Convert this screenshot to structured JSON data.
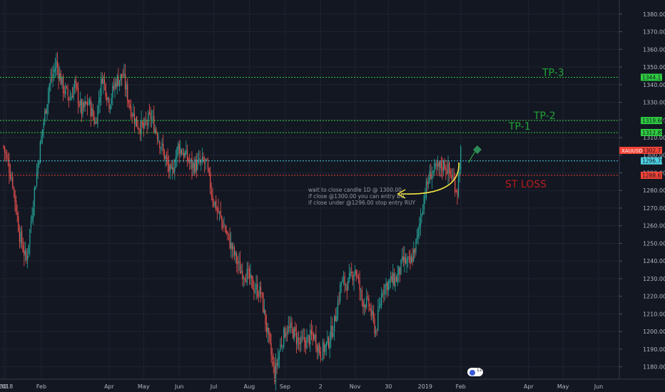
{
  "chart_data": {
    "type": "candlestick",
    "symbol": "XAUUSD",
    "ylim": [
      1173,
      1388
    ],
    "y_ticks": [
      1180,
      1190,
      1200,
      1210,
      1220,
      1230,
      1240,
      1250,
      1260,
      1270,
      1280,
      1290,
      1300,
      1310,
      1320,
      1330,
      1340,
      1350,
      1360,
      1370,
      1380
    ],
    "x_labels": [
      {
        "label": "30",
        "day": 0
      },
      {
        "label": "2018",
        "day": 2
      },
      {
        "label": "Feb",
        "day": 33
      },
      {
        "label": "Apr",
        "day": 92
      },
      {
        "label": "May",
        "day": 122
      },
      {
        "label": "Jun",
        "day": 153
      },
      {
        "label": "Jul",
        "day": 183
      },
      {
        "label": "Aug",
        "day": 214
      },
      {
        "label": "Sep",
        "day": 245
      },
      {
        "label": "2",
        "day": 276
      },
      {
        "label": "Nov",
        "day": 306
      },
      {
        "label": "30",
        "day": 335
      },
      {
        "label": "2019",
        "day": 367
      },
      {
        "label": "Feb",
        "day": 398
      },
      {
        "label": "Apr",
        "day": 457
      },
      {
        "label": "May",
        "day": 487
      },
      {
        "label": "Jun",
        "day": 518
      }
    ],
    "x_range": [
      -3,
      536
    ],
    "price_path": [
      [
        0,
        1305
      ],
      [
        8,
        1285
      ],
      [
        14,
        1255
      ],
      [
        20,
        1240
      ],
      [
        27,
        1280
      ],
      [
        34,
        1315
      ],
      [
        40,
        1340
      ],
      [
        46,
        1352
      ],
      [
        52,
        1338
      ],
      [
        58,
        1332
      ],
      [
        62,
        1340
      ],
      [
        68,
        1325
      ],
      [
        74,
        1330
      ],
      [
        80,
        1318
      ],
      [
        86,
        1345
      ],
      [
        92,
        1330
      ],
      [
        98,
        1342
      ],
      [
        104,
        1345
      ],
      [
        110,
        1328
      ],
      [
        116,
        1318
      ],
      [
        122,
        1315
      ],
      [
        128,
        1322
      ],
      [
        134,
        1312
      ],
      [
        140,
        1300
      ],
      [
        146,
        1288
      ],
      [
        152,
        1305
      ],
      [
        158,
        1300
      ],
      [
        164,
        1294
      ],
      [
        170,
        1295
      ],
      [
        176,
        1296
      ],
      [
        182,
        1276
      ],
      [
        188,
        1266
      ],
      [
        194,
        1256
      ],
      [
        200,
        1245
      ],
      [
        206,
        1235
      ],
      [
        212,
        1232
      ],
      [
        218,
        1225
      ],
      [
        224,
        1222
      ],
      [
        230,
        1198
      ],
      [
        236,
        1175
      ],
      [
        241,
        1192
      ],
      [
        246,
        1202
      ],
      [
        252,
        1200
      ],
      [
        258,
        1193
      ],
      [
        264,
        1195
      ],
      [
        270,
        1198
      ],
      [
        276,
        1188
      ],
      [
        282,
        1193
      ],
      [
        288,
        1205
      ],
      [
        294,
        1228
      ],
      [
        300,
        1227
      ],
      [
        306,
        1236
      ],
      [
        312,
        1218
      ],
      [
        318,
        1215
      ],
      [
        324,
        1200
      ],
      [
        330,
        1225
      ],
      [
        336,
        1228
      ],
      [
        342,
        1230
      ],
      [
        348,
        1240
      ],
      [
        354,
        1238
      ],
      [
        360,
        1252
      ],
      [
        366,
        1277
      ],
      [
        372,
        1290
      ],
      [
        378,
        1292
      ],
      [
        384,
        1295
      ],
      [
        390,
        1288
      ],
      [
        395,
        1280
      ],
      [
        398,
        1302
      ]
    ],
    "horizontal_levels": [
      {
        "label": "TP-3",
        "value": 1344.17,
        "color": "#2ecc40",
        "style": "dotted"
      },
      {
        "label": "TP-2",
        "value": 1319.66,
        "color": "#2ecc40",
        "style": "dotted"
      },
      {
        "label": "TP-1",
        "value": 1312.85,
        "color": "#2ecc40",
        "style": "dotted"
      },
      {
        "label": "",
        "value": 1296.78,
        "color": "#4dd0e1",
        "style": "dotted"
      },
      {
        "label": "ST LOSS",
        "value": 1288.61,
        "color": "#f44336",
        "style": "dotted"
      }
    ],
    "price_badges": [
      {
        "text": "1344.17",
        "value": 1344.17,
        "bg": "#2ecc40"
      },
      {
        "text": "1319.66",
        "value": 1319.66,
        "bg": "#2ecc40"
      },
      {
        "text": "1312.85",
        "value": 1312.85,
        "bg": "#2ecc40"
      },
      {
        "text": "1302.77",
        "value": 1302.77,
        "bg": "#f44336"
      },
      {
        "text": "1296.78",
        "value": 1296.78,
        "bg": "#4dd0e1"
      },
      {
        "text": "1288.61",
        "value": 1288.61,
        "bg": "#f44336"
      }
    ],
    "last_price": {
      "symbol": "XAUUSD",
      "value": 1302.77
    },
    "annotation": {
      "lines": [
        "wait to close candle 1D @ 1300.00",
        "if close @1300.00 you can entry BU",
        "if close under @1296.00 stop entry  RUY"
      ]
    },
    "up_color": "#26a69a",
    "down_color": "#ef5350"
  },
  "indicator_badge": "12.1"
}
